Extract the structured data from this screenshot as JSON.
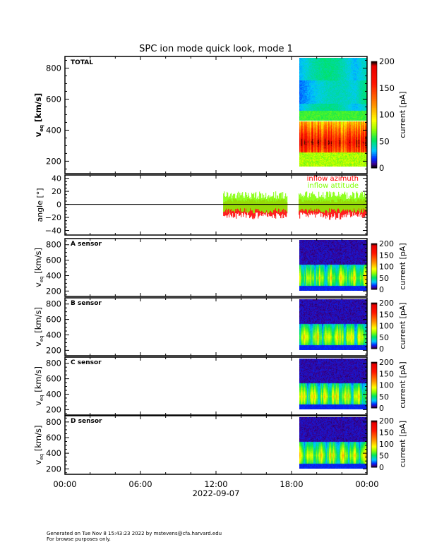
{
  "chart_data": {
    "type": "heatmap",
    "title": "SPC ion mode quick look, mode 1",
    "xlabel": "2022-09-07",
    "xlim_hours": [
      0,
      24
    ],
    "xticks": [
      "00:00",
      "06:00",
      "12:00",
      "18:00",
      "00:00"
    ],
    "xtick_hours": [
      0,
      6,
      12,
      18,
      24
    ],
    "data_start_hours": 18.6,
    "panels": [
      {
        "label": "TOTAL",
        "ylabel": "v",
        "ylabel_sub": "eq",
        "ylabel_unit": "[km/s]",
        "ylim": [
          120,
          875
        ],
        "yticks": [
          200,
          400,
          600,
          800
        ],
        "colorbar": {
          "label": "current [pA]",
          "range": [
            0,
            200
          ],
          "ticks": [
            0,
            50,
            100,
            150,
            200
          ]
        }
      },
      {
        "label": "angle",
        "ylabel": "angle [°]",
        "ylim": [
          -47,
          45
        ],
        "yticks": [
          -40,
          -20,
          0,
          20,
          40
        ],
        "series": [
          {
            "name": "inflow azimuth",
            "color": "#ff0000",
            "typical_range": [
              -25,
              5
            ]
          },
          {
            "name": "inflow attitude",
            "color": "#80ff00",
            "typical_range": [
              -12,
              20
            ]
          }
        ],
        "data_intervals_hours": [
          [
            12.6,
            17.7
          ],
          [
            18.6,
            24
          ]
        ]
      },
      {
        "label": "A sensor",
        "ylabel": "v",
        "ylabel_sub": "eq",
        "ylabel_unit": "[km/s]",
        "ylim": [
          130,
          880
        ],
        "yticks": [
          200,
          400,
          600,
          800
        ],
        "colorbar": {
          "label": "current [pA]",
          "range": [
            0,
            200
          ],
          "ticks": [
            0,
            50,
            100,
            150,
            200
          ]
        }
      },
      {
        "label": "B sensor",
        "ylabel": "v",
        "ylabel_sub": "eq",
        "ylabel_unit": "[km/s]",
        "ylim": [
          130,
          880
        ],
        "yticks": [
          200,
          400,
          600,
          800
        ],
        "colorbar": {
          "label": "current [pA]",
          "range": [
            0,
            200
          ],
          "ticks": [
            0,
            50,
            100,
            150,
            200
          ]
        }
      },
      {
        "label": "C sensor",
        "ylabel": "v",
        "ylabel_sub": "eq",
        "ylabel_unit": "[km/s]",
        "ylim": [
          130,
          880
        ],
        "yticks": [
          200,
          400,
          600,
          800
        ],
        "colorbar": {
          "label": "current [pA]",
          "range": [
            0,
            200
          ],
          "ticks": [
            0,
            50,
            100,
            150,
            200
          ]
        }
      },
      {
        "label": "D sensor",
        "ylabel": "v",
        "ylabel_sub": "eq",
        "ylabel_unit": "[km/s]",
        "ylim": [
          130,
          880
        ],
        "yticks": [
          200,
          400,
          600,
          800
        ],
        "colorbar": {
          "label": "current [pA]",
          "range": [
            0,
            200
          ],
          "ticks": [
            0,
            50,
            100,
            150,
            200
          ]
        }
      }
    ]
  },
  "footer": {
    "line1": "Generated on Tue Nov  8 15:43:23 2022 by mstevens@cfa.harvard.edu",
    "line2": "For browse purposes only."
  }
}
